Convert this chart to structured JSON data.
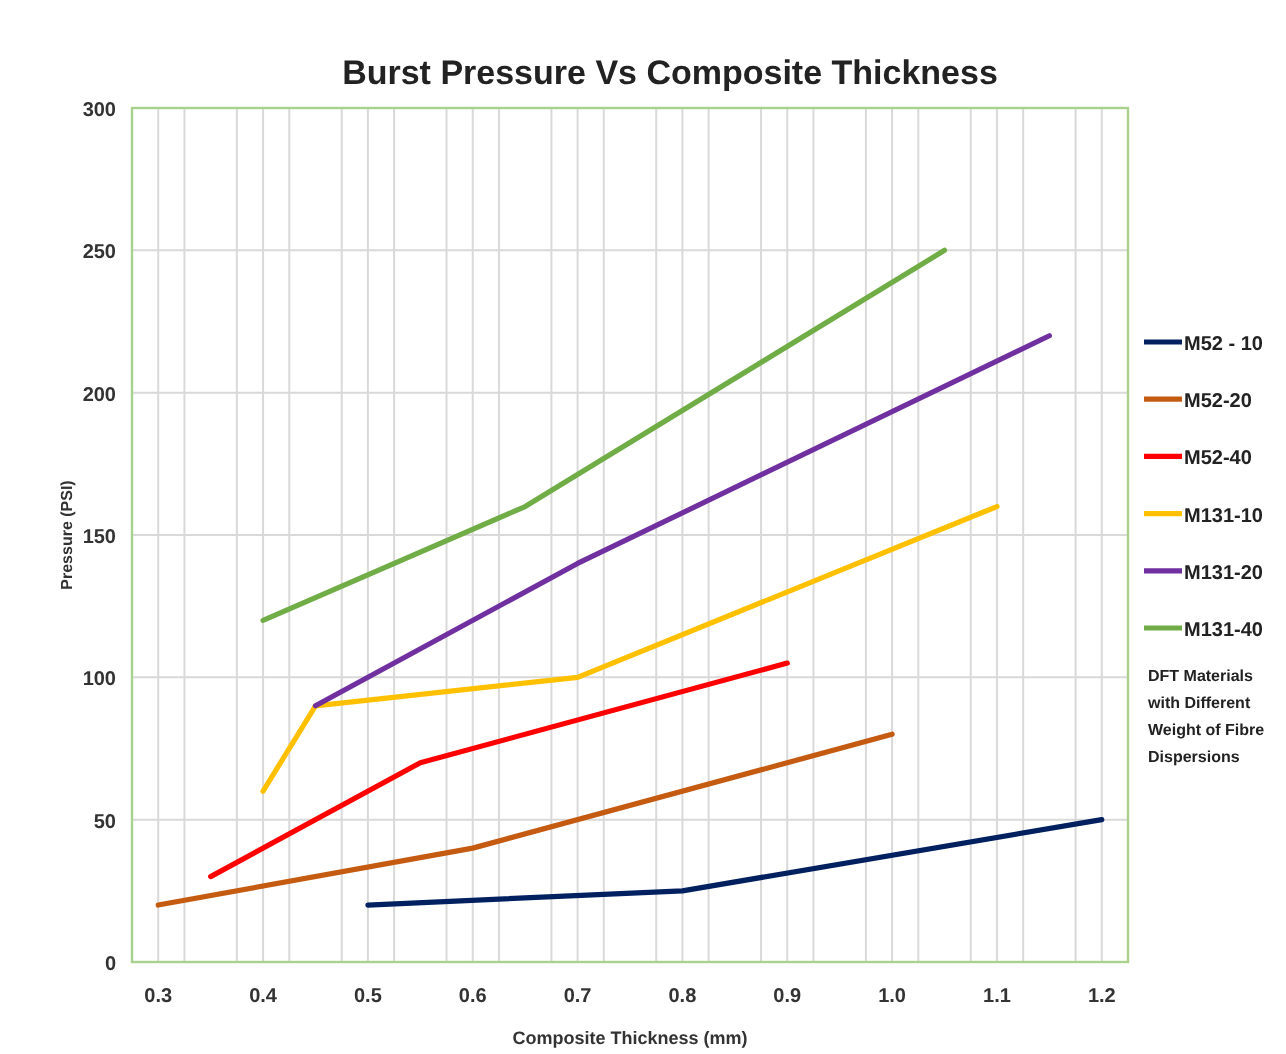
{
  "chart_data": {
    "type": "line",
    "title": "Burst Pressure Vs Composite Thickness",
    "xlabel": "Composite Thickness (mm)",
    "ylabel": "Pressure (PSI)",
    "xlim": [
      0.275,
      1.225
    ],
    "xticks": [
      0.3,
      {
        "value": 0.325,
        "label": null
      },
      0.4,
      {
        "value": 0.375,
        "label": null
      },
      {
        "value": 0.425,
        "label": null
      },
      0.5,
      {
        "value": 0.475,
        "label": null
      },
      {
        "value": 0.525,
        "label": null
      },
      0.6,
      {
        "value": 0.575,
        "label": null
      },
      {
        "value": 0.625,
        "label": null
      },
      0.7,
      {
        "value": 0.675,
        "label": null
      },
      {
        "value": 0.725,
        "label": null
      },
      0.8,
      {
        "value": 0.775,
        "label": null
      },
      {
        "value": 0.825,
        "label": null
      },
      0.9,
      {
        "value": 0.875,
        "label": null
      },
      {
        "value": 0.925,
        "label": null
      },
      {
        "value": 1,
        "label": "1.0"
      },
      {
        "value": 0.975,
        "label": null
      },
      {
        "value": 1.025,
        "label": null
      },
      1.1,
      {
        "value": 1.075,
        "label": null
      },
      {
        "value": 1.125,
        "label": null
      },
      1.2,
      {
        "value": 1.175,
        "label": null
      }
    ],
    "ylim": [
      0,
      300
    ],
    "yticks": [
      0,
      50,
      100,
      150,
      200,
      250,
      300
    ],
    "grid": true,
    "legend": "right",
    "line_style": "solid",
    "marker": "none",
    "annotations": [
      "DFT Materials with Different Weight of Fibre Dispersions"
    ],
    "series": [
      {
        "name": "M52 - 10",
        "color": "#002060",
        "x": [
          0.5,
          0.8,
          1.2
        ],
        "values": [
          20,
          25,
          50
        ]
      },
      {
        "name": "M52-20",
        "color": "#c55a11",
        "x": [
          0.3,
          0.6,
          1.0
        ],
        "values": [
          20,
          40,
          80
        ]
      },
      {
        "name": "M52-40",
        "color": "#ff0000",
        "x": [
          0.35,
          0.55,
          0.9
        ],
        "values": [
          30,
          70,
          105
        ]
      },
      {
        "name": "M131-10",
        "color": "#ffc000",
        "x": [
          0.4,
          0.45,
          0.7,
          1.1
        ],
        "values": [
          60,
          90,
          100,
          160
        ]
      },
      {
        "name": "M131-20",
        "color": "#7030a0",
        "x": [
          0.45,
          0.7,
          1.15
        ],
        "values": [
          90,
          140,
          220
        ]
      },
      {
        "name": "M131-40",
        "color": "#70ad47",
        "x": [
          0.4,
          0.65,
          1.05
        ],
        "values": [
          120,
          160,
          250
        ]
      }
    ]
  }
}
